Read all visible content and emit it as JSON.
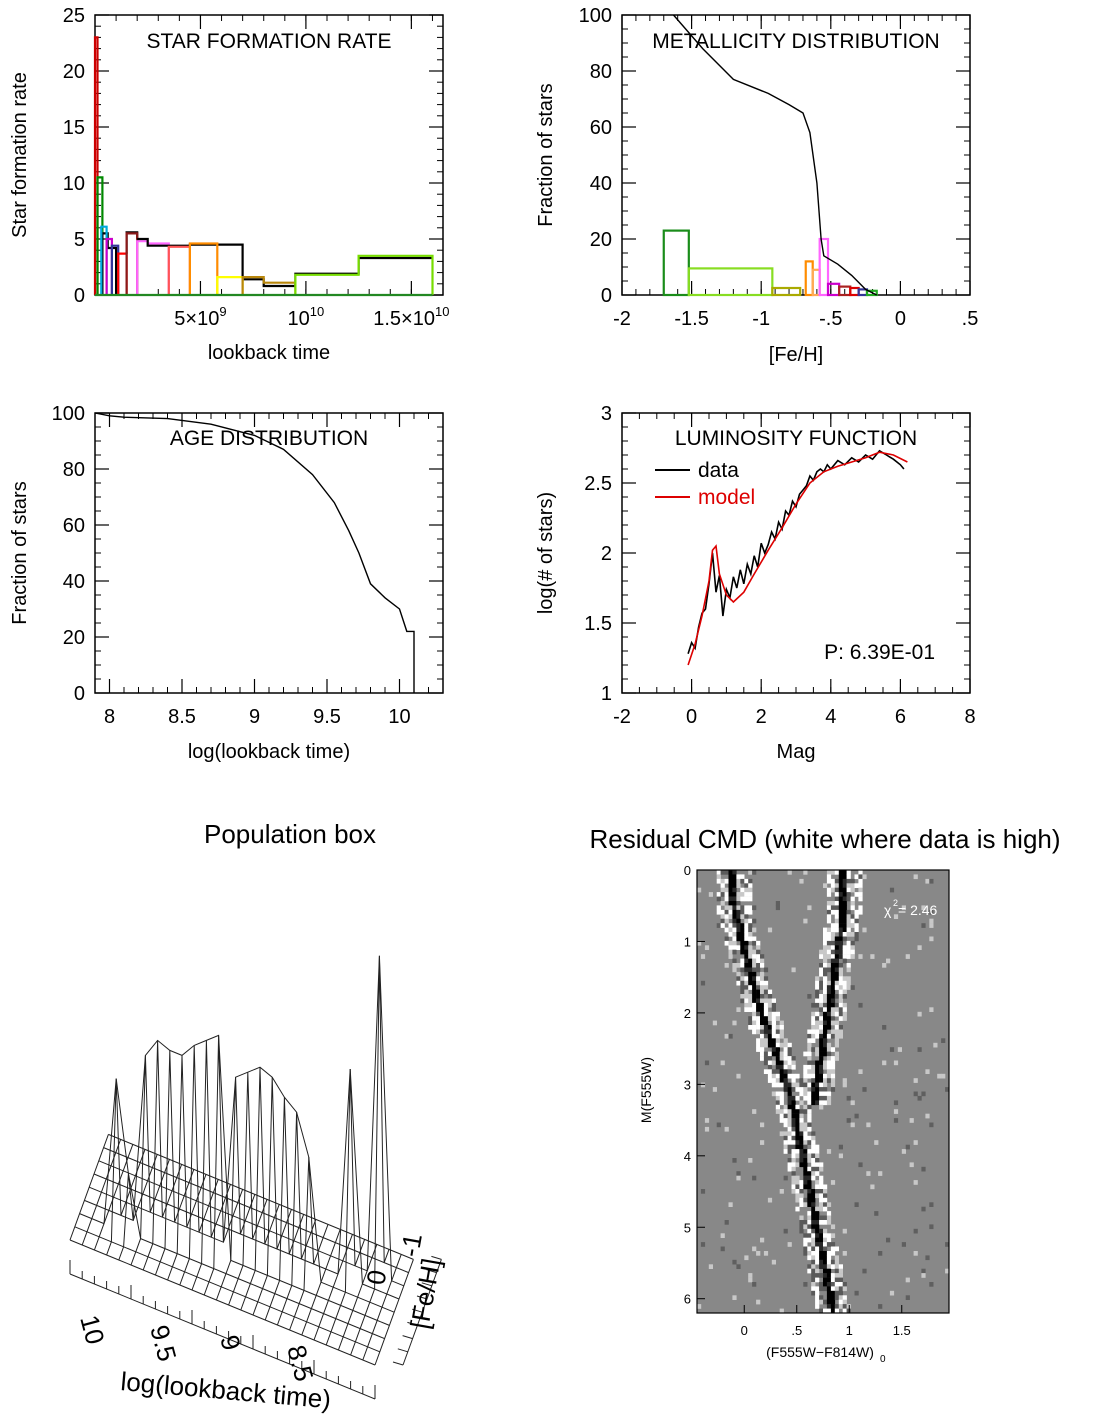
{
  "sfr": {
    "chart_data": {
      "type": "line",
      "title": "STAR FORMATION RATE",
      "xlabel": "lookback time",
      "ylabel": "Star formation rate",
      "xlim": [
        0,
        16500000000.0
      ],
      "ylim": [
        0,
        25
      ],
      "xticks": [
        {
          "v": 5000000000.0,
          "base": "5×10",
          "exp": "9"
        },
        {
          "v": 10000000000.0,
          "base": "10",
          "exp": "10"
        },
        {
          "v": 15000000000.0,
          "base": "1.5×10",
          "exp": "10"
        }
      ],
      "yticks": [
        0,
        5,
        10,
        15,
        20,
        25
      ],
      "series": [
        {
          "color": "#cc0000",
          "points": [
            [
              0,
              0
            ],
            [
              0,
              23
            ],
            [
              120000000.0,
              23
            ],
            [
              120000000.0,
              0
            ]
          ]
        },
        {
          "color": "#008800",
          "points": [
            [
              120000000.0,
              0
            ],
            [
              120000000.0,
              10.5
            ],
            [
              350000000.0,
              10.5
            ],
            [
              350000000.0,
              0
            ]
          ]
        },
        {
          "color": "#000000",
          "points": [
            [
              350000000.0,
              0
            ],
            [
              350000000.0,
              5.5
            ],
            [
              600000000.0,
              5.5
            ],
            [
              600000000.0,
              4.2
            ],
            [
              1000000000.0,
              4.2
            ],
            [
              1000000000.0,
              0
            ]
          ]
        },
        {
          "color": "#00aadd",
          "points": [
            [
              300000000.0,
              0
            ],
            [
              300000000.0,
              6.1
            ],
            [
              550000000.0,
              6.1
            ],
            [
              550000000.0,
              0
            ]
          ]
        },
        {
          "color": "#cc00cc",
          "points": [
            [
              550000000.0,
              0
            ],
            [
              550000000.0,
              5.0
            ],
            [
              800000000.0,
              5.0
            ],
            [
              800000000.0,
              0
            ]
          ]
        },
        {
          "color": "#333399",
          "points": [
            [
              800000000.0,
              0
            ],
            [
              800000000.0,
              4.4
            ],
            [
              1100000000.0,
              4.4
            ],
            [
              1100000000.0,
              0
            ]
          ]
        },
        {
          "color": "#ff0000",
          "points": [
            [
              1100000000.0,
              0
            ],
            [
              1100000000.0,
              3.7
            ],
            [
              1500000000.0,
              3.7
            ],
            [
              1500000000.0,
              0
            ]
          ]
        },
        {
          "color": "#000000",
          "points": [
            [
              1500000000.0,
              3.7
            ],
            [
              1500000000.0,
              5.6
            ],
            [
              2000000000.0,
              5.6
            ],
            [
              2000000000.0,
              5.0
            ]
          ]
        },
        {
          "color": "#8b1a1a",
          "points": [
            [
              1500000000.0,
              0
            ],
            [
              1500000000.0,
              5.5
            ],
            [
              2000000000.0,
              5.5
            ],
            [
              2000000000.0,
              0
            ]
          ]
        },
        {
          "color": "#ff66ff",
          "points": [
            [
              2000000000.0,
              0
            ],
            [
              2000000000.0,
              4.8
            ],
            [
              2500000000.0,
              4.8
            ],
            [
              2500000000.0,
              4.6
            ],
            [
              3500000000.0,
              4.6
            ],
            [
              3500000000.0,
              0
            ]
          ]
        },
        {
          "color": "#000000",
          "points": [
            [
              2000000000.0,
              5.0
            ],
            [
              2500000000.0,
              5.0
            ],
            [
              2500000000.0,
              4.4
            ],
            [
              4500000000.0,
              4.4
            ],
            [
              4500000000.0,
              4.5
            ],
            [
              7000000000.0,
              4.5
            ],
            [
              7000000000.0,
              1.4
            ],
            [
              8000000000.0,
              1.4
            ],
            [
              8000000000.0,
              0.8
            ],
            [
              9500000000.0,
              0.8
            ],
            [
              9500000000.0,
              1.9
            ],
            [
              12500000000.0,
              1.9
            ],
            [
              12500000000.0,
              3.3
            ],
            [
              16000000000.0,
              3.3
            ]
          ]
        },
        {
          "color": "#ff5555",
          "points": [
            [
              3500000000.0,
              0
            ],
            [
              3500000000.0,
              4.3
            ],
            [
              4500000000.0,
              4.3
            ],
            [
              4500000000.0,
              0
            ]
          ]
        },
        {
          "color": "#ff8c00",
          "points": [
            [
              4500000000.0,
              0
            ],
            [
              4500000000.0,
              4.6
            ],
            [
              5800000000.0,
              4.6
            ],
            [
              5800000000.0,
              0
            ]
          ]
        },
        {
          "color": "#ffff00",
          "points": [
            [
              5800000000.0,
              0
            ],
            [
              5800000000.0,
              1.6
            ],
            [
              7000000000.0,
              1.6
            ],
            [
              7000000000.0,
              0
            ]
          ]
        },
        {
          "color": "#b8860b",
          "points": [
            [
              7000000000.0,
              0
            ],
            [
              7000000000.0,
              1.6
            ],
            [
              8000000000.0,
              1.6
            ],
            [
              8000000000.0,
              1.1
            ],
            [
              9500000000.0,
              1.1
            ],
            [
              9500000000.0,
              0
            ]
          ]
        },
        {
          "color": "#77dd00",
          "points": [
            [
              9500000000.0,
              0
            ],
            [
              9500000000.0,
              1.8
            ],
            [
              12500000000.0,
              1.8
            ],
            [
              12500000000.0,
              3.5
            ],
            [
              16000000000.0,
              3.5
            ],
            [
              16000000000.0,
              0
            ]
          ]
        },
        {
          "color": "#228822",
          "points": [
            [
              0,
              0
            ],
            [
              16000000000.0,
              0
            ]
          ]
        }
      ]
    }
  },
  "metallicity": {
    "chart_data": {
      "type": "line",
      "title": "METALLICITY DISTRIBUTION",
      "xlabel": "[Fe/H]",
      "ylabel": "Fraction of stars",
      "xlim": [
        -2,
        0.5
      ],
      "ylim": [
        0,
        100
      ],
      "xticks": [
        "-2",
        "-1.5",
        "-1",
        "-.5",
        "0",
        ".5"
      ],
      "xtick_values": [
        -2,
        -1.5,
        -1,
        -0.5,
        0,
        0.5
      ],
      "yticks": [
        0,
        20,
        40,
        60,
        80,
        100
      ],
      "cumulative": [
        [
          -1.63,
          100
        ],
        [
          -1.42,
          88
        ],
        [
          -1.2,
          77
        ],
        [
          -0.95,
          72
        ],
        [
          -0.8,
          68
        ],
        [
          -0.7,
          65
        ],
        [
          -0.65,
          58
        ],
        [
          -0.6,
          40
        ],
        [
          -0.57,
          20
        ],
        [
          -0.55,
          14
        ],
        [
          -0.45,
          11
        ],
        [
          -0.35,
          7
        ],
        [
          -0.25,
          2
        ],
        [
          -0.17,
          0
        ]
      ],
      "bars": [
        {
          "x0": -1.7,
          "x1": -1.52,
          "h": 23,
          "color": "#1a8c1a"
        },
        {
          "x0": -1.52,
          "x1": -0.92,
          "h": 9.5,
          "color": "#88dd22"
        },
        {
          "x0": -0.92,
          "x1": -0.72,
          "h": 2.5,
          "color": "#aaaa00"
        },
        {
          "x0": -0.68,
          "x1": -0.63,
          "h": 12,
          "color": "#ff8c00"
        },
        {
          "x0": -0.63,
          "x1": -0.58,
          "h": 9,
          "color": "#ffaa55"
        },
        {
          "x0": -0.58,
          "x1": -0.52,
          "h": 20,
          "color": "#ff66ff"
        },
        {
          "x0": -0.52,
          "x1": -0.44,
          "h": 4,
          "color": "#cc00cc"
        },
        {
          "x0": -0.44,
          "x1": -0.36,
          "h": 3,
          "color": "#aa2222"
        },
        {
          "x0": -0.36,
          "x1": -0.3,
          "h": 2.5,
          "color": "#dd0000"
        },
        {
          "x0": -0.3,
          "x1": -0.24,
          "h": 2,
          "color": "#333399"
        },
        {
          "x0": -0.24,
          "x1": -0.17,
          "h": 1.5,
          "color": "#22aa22"
        }
      ]
    }
  },
  "age": {
    "chart_data": {
      "type": "line",
      "title": "AGE DISTRIBUTION",
      "xlabel": "log(lookback time)",
      "ylabel": "Fraction of stars",
      "xlim": [
        7.9,
        10.3
      ],
      "ylim": [
        0,
        100
      ],
      "xticks": [
        "8",
        "8.5",
        "9",
        "9.5",
        "10"
      ],
      "xtick_values": [
        8,
        8.5,
        9,
        9.5,
        10
      ],
      "yticks": [
        0,
        20,
        40,
        60,
        80,
        100
      ],
      "points": [
        [
          7.9,
          100
        ],
        [
          8.0,
          99
        ],
        [
          8.1,
          98.5
        ],
        [
          8.4,
          98
        ],
        [
          8.7,
          96
        ],
        [
          9.0,
          92
        ],
        [
          9.2,
          87
        ],
        [
          9.4,
          78
        ],
        [
          9.55,
          68
        ],
        [
          9.65,
          58
        ],
        [
          9.72,
          50
        ],
        [
          9.8,
          39
        ],
        [
          9.9,
          34
        ],
        [
          10.0,
          30
        ],
        [
          10.05,
          22
        ],
        [
          10.1,
          22
        ],
        [
          10.1,
          0
        ]
      ]
    }
  },
  "lumfunc": {
    "chart_data": {
      "type": "line",
      "title": "LUMINOSITY FUNCTION",
      "xlabel": "Mag",
      "ylabel": "log(# of stars)",
      "xlim": [
        -2,
        8
      ],
      "ylim": [
        1,
        3
      ],
      "xticks": [
        "-2",
        "0",
        "2",
        "4",
        "6",
        "8"
      ],
      "xtick_values": [
        -2,
        0,
        2,
        4,
        6,
        8
      ],
      "yticks": [
        "1",
        "1.5",
        "2",
        "2.5",
        "3"
      ],
      "ytick_values": [
        1,
        1.5,
        2,
        2.5,
        3
      ],
      "legend": {
        "data_label": "data",
        "model_label": "model"
      },
      "annotation": "P: 6.39E-01",
      "series": [
        {
          "name": "data",
          "color": "#000000",
          "points": [
            [
              -0.1,
              1.28
            ],
            [
              0.0,
              1.36
            ],
            [
              0.1,
              1.32
            ],
            [
              0.2,
              1.47
            ],
            [
              0.3,
              1.57
            ],
            [
              0.4,
              1.6
            ],
            [
              0.5,
              1.78
            ],
            [
              0.6,
              2.0
            ],
            [
              0.7,
              1.72
            ],
            [
              0.8,
              1.84
            ],
            [
              0.9,
              1.55
            ],
            [
              1.0,
              1.74
            ],
            [
              1.1,
              1.68
            ],
            [
              1.2,
              1.83
            ],
            [
              1.3,
              1.75
            ],
            [
              1.4,
              1.88
            ],
            [
              1.5,
              1.78
            ],
            [
              1.6,
              1.92
            ],
            [
              1.7,
              1.85
            ],
            [
              1.8,
              1.98
            ],
            [
              1.9,
              1.9
            ],
            [
              2.0,
              2.07
            ],
            [
              2.1,
              2.0
            ],
            [
              2.2,
              2.06
            ],
            [
              2.3,
              2.15
            ],
            [
              2.4,
              2.1
            ],
            [
              2.5,
              2.22
            ],
            [
              2.6,
              2.17
            ],
            [
              2.7,
              2.3
            ],
            [
              2.8,
              2.27
            ],
            [
              2.9,
              2.37
            ],
            [
              3.0,
              2.33
            ],
            [
              3.1,
              2.42
            ],
            [
              3.2,
              2.45
            ],
            [
              3.3,
              2.48
            ],
            [
              3.4,
              2.55
            ],
            [
              3.5,
              2.52
            ],
            [
              3.6,
              2.58
            ],
            [
              3.7,
              2.6
            ],
            [
              3.8,
              2.58
            ],
            [
              3.9,
              2.63
            ],
            [
              4.0,
              2.6
            ],
            [
              4.2,
              2.66
            ],
            [
              4.4,
              2.63
            ],
            [
              4.6,
              2.68
            ],
            [
              4.8,
              2.65
            ],
            [
              5.0,
              2.7
            ],
            [
              5.2,
              2.67
            ],
            [
              5.4,
              2.73
            ],
            [
              5.6,
              2.7
            ],
            [
              5.8,
              2.67
            ],
            [
              6.0,
              2.63
            ],
            [
              6.1,
              2.6
            ]
          ]
        },
        {
          "name": "model",
          "color": "#dd0000",
          "points": [
            [
              -0.1,
              1.2
            ],
            [
              0.1,
              1.35
            ],
            [
              0.3,
              1.55
            ],
            [
              0.5,
              1.8
            ],
            [
              0.6,
              2.02
            ],
            [
              0.7,
              2.05
            ],
            [
              0.8,
              1.85
            ],
            [
              1.0,
              1.7
            ],
            [
              1.2,
              1.65
            ],
            [
              1.5,
              1.72
            ],
            [
              1.8,
              1.85
            ],
            [
              2.2,
              2.02
            ],
            [
              2.6,
              2.18
            ],
            [
              3.0,
              2.35
            ],
            [
              3.4,
              2.5
            ],
            [
              3.8,
              2.58
            ],
            [
              4.2,
              2.62
            ],
            [
              4.6,
              2.65
            ],
            [
              5.0,
              2.68
            ],
            [
              5.4,
              2.72
            ],
            [
              5.8,
              2.7
            ],
            [
              6.2,
              2.65
            ]
          ]
        }
      ]
    }
  },
  "popbox": {
    "title": "Population box",
    "xlabel": "log(lookback time)",
    "ylabel": "[Fe/H]",
    "xticks": [
      "10",
      "9.5",
      "9",
      "8.5"
    ],
    "yticks": [
      "0",
      "-1"
    ]
  },
  "cmd": {
    "chart_data": {
      "type": "heatmap",
      "title": "Residual CMD (white where data is high)",
      "xlabel": "(F555W−F814W)",
      "xlabel_sub": "0",
      "ylabel": "M(F555W)",
      "xlim": [
        -0.45,
        1.95
      ],
      "ylim": [
        6.2,
        0
      ],
      "xticks": [
        "0",
        ".5",
        "1",
        "1.5"
      ],
      "xtick_values": [
        0,
        0.5,
        1,
        1.5
      ],
      "yticks": [
        "0",
        "1",
        "2",
        "3",
        "4",
        "5",
        "6"
      ],
      "ytick_values": [
        0,
        1,
        2,
        3,
        4,
        5,
        6
      ],
      "chi2_label": "χ",
      "chi2_value": "=  2.46"
    }
  }
}
